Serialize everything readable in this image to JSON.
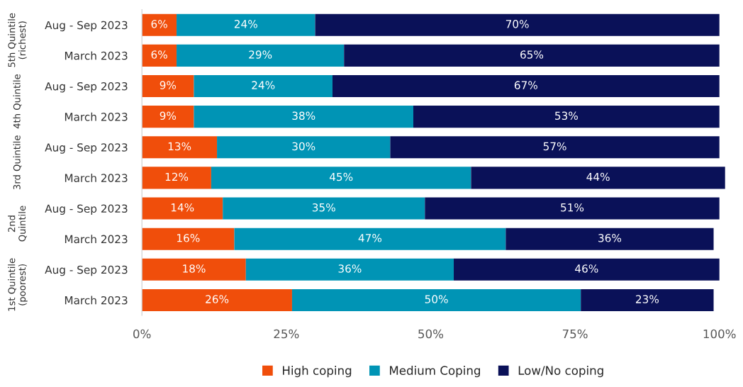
{
  "chart_data": {
    "type": "bar",
    "orientation": "horizontal",
    "stacked": true,
    "legend": "bottom",
    "grid": false,
    "categories": [
      "Aug - Sep 2023",
      "March 2023",
      "Aug - Sep 2023",
      "March 2023",
      "Aug - Sep 2023",
      "March 2023",
      "Aug - Sep 2023",
      "March 2023",
      "Aug - Sep 2023",
      "March 2023"
    ],
    "series": [
      {
        "name": "High coping",
        "color": "#f04e0b",
        "values": [
          6,
          6,
          9,
          9,
          13,
          12,
          14,
          16,
          18,
          26
        ],
        "value_labels": [
          "6%",
          "6%",
          "9%",
          "9%",
          "13%",
          "12%",
          "14%",
          "16%",
          "18%",
          "26%"
        ]
      },
      {
        "name": "Medium Coping",
        "color": "#0094b5",
        "values": [
          24,
          29,
          24,
          38,
          30,
          45,
          35,
          47,
          36,
          50
        ],
        "value_labels": [
          "24%",
          "29%",
          "24%",
          "38%",
          "30%",
          "45%",
          "35%",
          "47%",
          "36%",
          "50%"
        ]
      },
      {
        "name": "Low/No coping",
        "color": "#0a1158",
        "values": [
          70,
          65,
          67,
          53,
          57,
          44,
          51,
          36,
          46,
          23
        ],
        "value_labels": [
          "70%",
          "65%",
          "67%",
          "53%",
          "57%",
          "44%",
          "51%",
          "36%",
          "46%",
          "23%"
        ]
      }
    ],
    "xlim": [
      0,
      101
    ],
    "xticks": [
      {
        "value": 0,
        "label": "0%"
      },
      {
        "value": 25,
        "label": "25%"
      },
      {
        "value": 50,
        "label": "50%"
      },
      {
        "value": 75,
        "label": "75%"
      },
      {
        "value": 100,
        "label": "100%"
      }
    ],
    "annotations": [
      "5th Quintile\n(richest)",
      "4th Quintile",
      "3rd Quintile",
      "2nd\nQuintile",
      "1st Quintile\n(poorest)"
    ]
  }
}
